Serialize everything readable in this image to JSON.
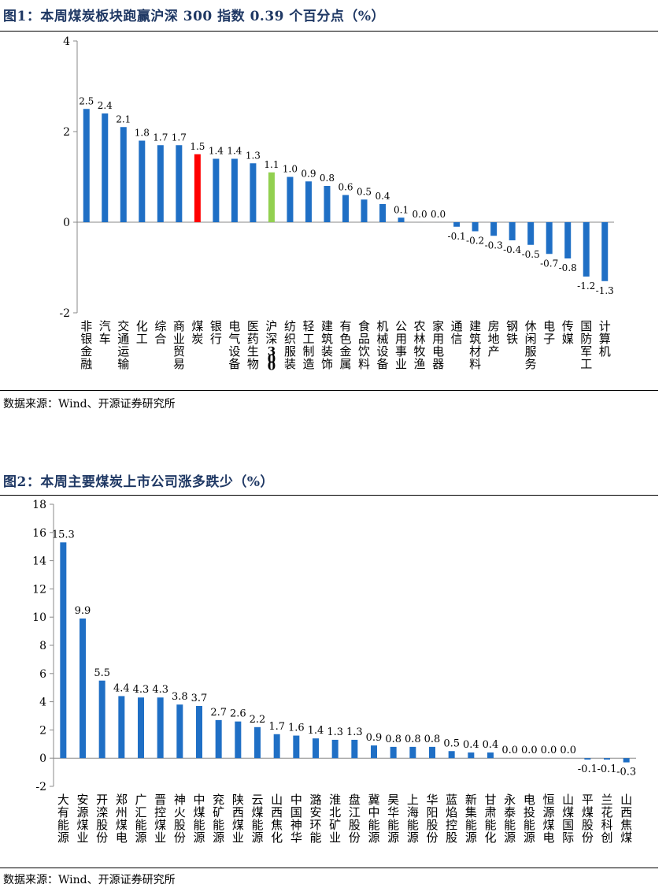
{
  "figures": [
    {
      "title": "图1：本周煤炭板块跑赢沪深 300 指数 0.39 个百分点（%）",
      "source": "数据来源：Wind、开源证券研究所",
      "chart_data": {
        "type": "bar",
        "title": "",
        "xlabel": "",
        "ylabel": "",
        "ylim": [
          -2,
          4
        ],
        "yticks": [
          "-2",
          "0",
          "2",
          "4"
        ],
        "grid": false,
        "categories": [
          "非银金融",
          "汽车",
          "交通运输",
          "化工",
          "综合",
          "商业贸易",
          "煤炭",
          "银行",
          "电气设备",
          "医药生物",
          "沪深300",
          "纺织服装",
          "轻工制造",
          "建筑装饰",
          "有色金属",
          "食品饮料",
          "机械设备",
          "公用事业",
          "农林牧渔",
          "家用电器",
          "通信",
          "建筑材料",
          "房地产",
          "钢铁",
          "休闲服务",
          "电子",
          "传媒",
          "国防军工",
          "计算机"
        ],
        "values": [
          2.5,
          2.4,
          2.1,
          1.8,
          1.7,
          1.7,
          1.5,
          1.4,
          1.4,
          1.3,
          1.1,
          1.0,
          0.9,
          0.8,
          0.6,
          0.5,
          0.4,
          0.1,
          0.0,
          0.0,
          -0.1,
          -0.2,
          -0.3,
          -0.4,
          -0.5,
          -0.7,
          -0.8,
          -1.2,
          -1.3
        ],
        "value_labels": [
          "2.5",
          "2.4",
          "2.1",
          "1.8",
          "1.7",
          "1.7",
          "1.5",
          "1.4",
          "1.4",
          "1.3",
          "1.1",
          "1.0",
          "0.9",
          "0.8",
          "0.6",
          "0.5",
          "0.4",
          "0.1",
          "0.0",
          "0.0",
          "-0.1",
          "-0.2",
          "-0.3",
          "-0.4",
          "-0.5",
          "-0.7",
          "-0.8",
          "-1.2",
          "-1.3"
        ],
        "colors": {
          "default": "#1f6fc5",
          "highlight": "#ff0000",
          "benchmark": "#92d050"
        },
        "highlight_category": "煤炭",
        "benchmark_category": "沪深300"
      }
    },
    {
      "title": "图2：本周主要煤炭上市公司涨多跌少（%）",
      "source": "数据来源：Wind、开源证券研究所",
      "chart_data": {
        "type": "bar",
        "title": "",
        "xlabel": "",
        "ylabel": "",
        "ylim": [
          -2,
          18
        ],
        "yticks": [
          "-2",
          "0",
          "2",
          "4",
          "6",
          "8",
          "10",
          "12",
          "14",
          "16",
          "18"
        ],
        "grid": false,
        "categories": [
          "大有能源",
          "安源煤业",
          "开滦股份",
          "郑州煤电",
          "广汇能源",
          "晋控煤业",
          "神火股份",
          "中煤能源",
          "兖矿能源",
          "陕西煤业",
          "云煤能源",
          "山西焦化",
          "中国神华",
          "潞安环能",
          "淮北矿业",
          "盘江股份",
          "冀中能源",
          "昊华能源",
          "上海能源",
          "华阳股份",
          "蓝焰控股",
          "新集能源",
          "甘肃能化",
          "永泰能源",
          "电投能源",
          "恒源煤电",
          "山煤国际",
          "平煤股份",
          "兰花科创",
          "山西焦煤"
        ],
        "values": [
          15.3,
          9.9,
          5.5,
          4.4,
          4.3,
          4.3,
          3.8,
          3.7,
          2.7,
          2.6,
          2.2,
          1.7,
          1.6,
          1.4,
          1.3,
          1.3,
          0.9,
          0.8,
          0.8,
          0.8,
          0.5,
          0.4,
          0.4,
          0.0,
          0.0,
          0.0,
          0.0,
          -0.1,
          -0.1,
          -0.3
        ],
        "value_labels": [
          "15.3",
          "9.9",
          "5.5",
          "4.4",
          "4.3",
          "4.3",
          "3.8",
          "3.7",
          "2.7",
          "2.6",
          "2.2",
          "1.7",
          "1.6",
          "1.4",
          "1.3",
          "1.3",
          "0.9",
          "0.8",
          "0.8",
          "0.8",
          "0.5",
          "0.4",
          "0.4",
          "0.0",
          "0.0",
          "0.0",
          "0.0",
          "-0.1",
          "-0.1",
          "-0.3"
        ],
        "colors": {
          "default": "#1f6fc5"
        }
      }
    }
  ]
}
